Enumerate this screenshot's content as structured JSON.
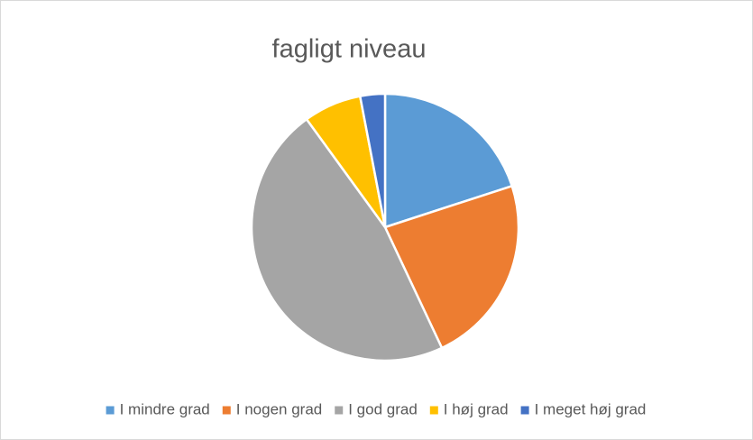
{
  "chart_data": {
    "type": "pie",
    "title": "fagligt niveau",
    "categories": [
      "I mindre grad",
      "I nogen grad",
      "I god grad",
      "I høj grad",
      "I meget høj grad"
    ],
    "values": [
      20,
      23,
      47,
      7,
      3
    ],
    "colors": [
      "#5b9bd5",
      "#ed7d31",
      "#a5a5a5",
      "#ffc000",
      "#4472c4"
    ],
    "legend": "bottom"
  }
}
